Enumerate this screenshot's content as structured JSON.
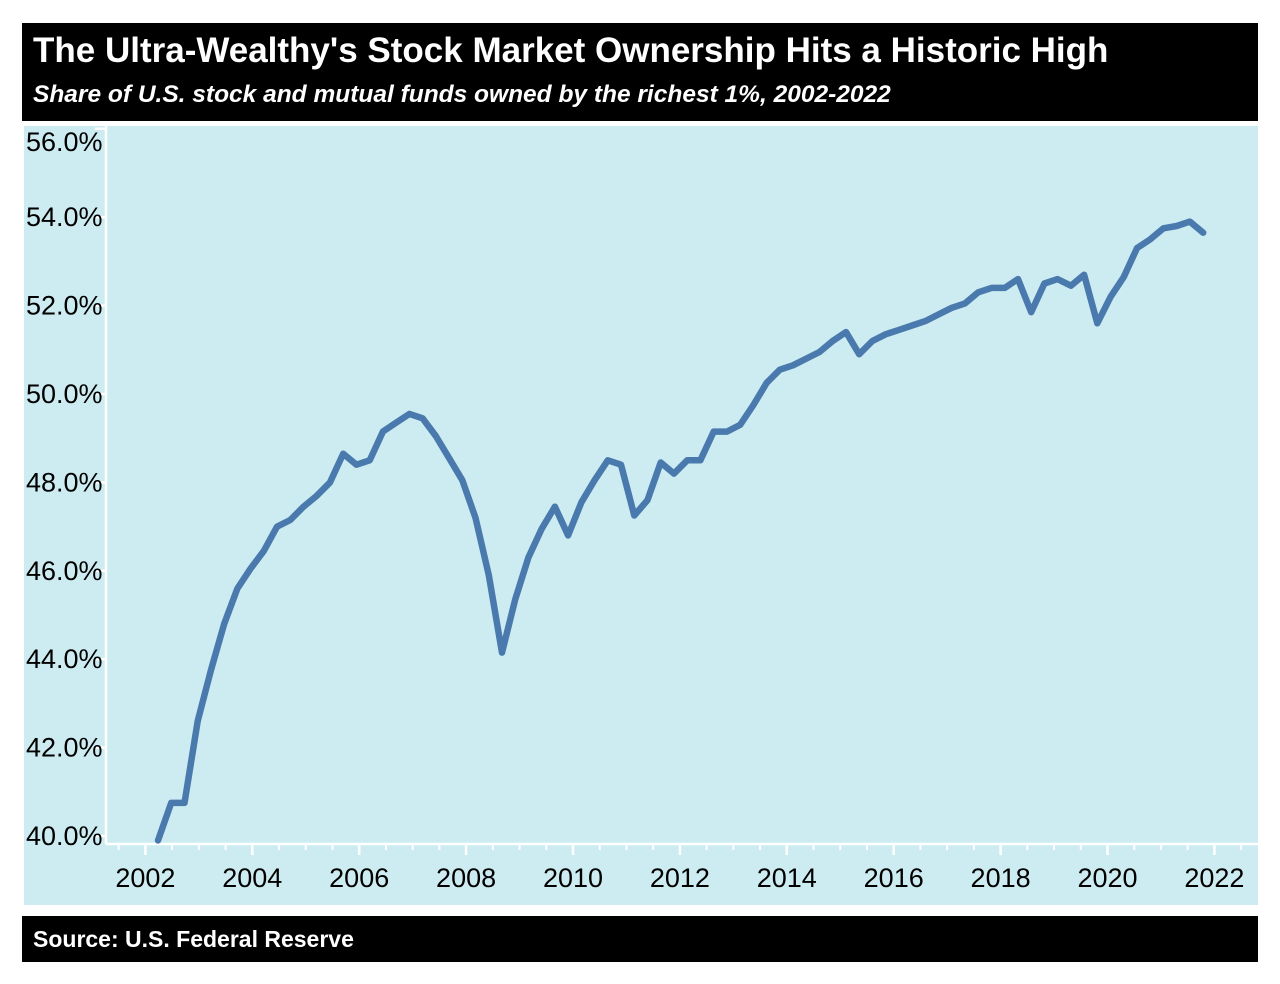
{
  "header": {
    "title": "The Ultra-Wealthy's Stock Market Ownership Hits a Historic High",
    "subtitle": "Share of U.S. stock and mutual funds owned by the richest 1%, 2002-2022"
  },
  "footer": {
    "source": "Source: U.S. Federal Reserve"
  },
  "colors": {
    "page_bg": "#ffffff",
    "header_bg": "#000000",
    "header_text": "#ffffff",
    "panel_bg": "#cdecf1",
    "line": "#4a7aad",
    "axis": "#ffffff",
    "tick_label": "#000000"
  },
  "chart_data": {
    "type": "line",
    "title": "The Ultra-Wealthy's Stock Market Ownership Hits a Historic High",
    "subtitle": "Share of U.S. stock and mutual funds owned by the richest 1%, 2002-2022",
    "source": "Source: U.S. Federal Reserve",
    "grid": false,
    "legend": false,
    "xlabel": "",
    "ylabel": "",
    "x": [
      "2002Q2",
      "2002Q3",
      "2002Q4",
      "2003Q1",
      "2003Q2",
      "2003Q3",
      "2003Q4",
      "2004Q1",
      "2004Q2",
      "2004Q3",
      "2004Q4",
      "2005Q1",
      "2005Q2",
      "2005Q3",
      "2005Q4",
      "2006Q1",
      "2006Q2",
      "2006Q3",
      "2006Q4",
      "2007Q1",
      "2007Q2",
      "2007Q3",
      "2007Q4",
      "2008Q1",
      "2008Q2",
      "2008Q3",
      "2008Q4",
      "2009Q1",
      "2009Q2",
      "2009Q3",
      "2009Q4",
      "2010Q1",
      "2010Q2",
      "2010Q3",
      "2010Q4",
      "2011Q1",
      "2011Q2",
      "2011Q3",
      "2011Q4",
      "2012Q1",
      "2012Q2",
      "2012Q3",
      "2012Q4",
      "2013Q1",
      "2013Q2",
      "2013Q3",
      "2013Q4",
      "2014Q1",
      "2014Q2",
      "2014Q3",
      "2014Q4",
      "2015Q1",
      "2015Q2",
      "2015Q3",
      "2015Q4",
      "2016Q1",
      "2016Q2",
      "2016Q3",
      "2016Q4",
      "2017Q1",
      "2017Q2",
      "2017Q3",
      "2017Q4",
      "2018Q1",
      "2018Q2",
      "2018Q3",
      "2018Q4",
      "2019Q1",
      "2019Q2",
      "2019Q3",
      "2019Q4",
      "2020Q1",
      "2020Q2",
      "2020Q3",
      "2020Q4",
      "2021Q1",
      "2021Q2",
      "2021Q3",
      "2021Q4",
      "2022Q1"
    ],
    "series": [
      {
        "name": "Share of U.S. stock and mutual funds owned by the richest 1%",
        "values": [
          39.9,
          40.75,
          40.75,
          42.6,
          43.75,
          44.8,
          45.6,
          46.05,
          46.45,
          47.0,
          47.15,
          47.45,
          47.7,
          48.0,
          48.65,
          48.4,
          48.5,
          49.15,
          49.35,
          49.55,
          49.45,
          49.05,
          48.55,
          48.05,
          47.2,
          45.9,
          44.15,
          45.35,
          46.3,
          46.95,
          47.45,
          46.8,
          47.55,
          48.05,
          48.5,
          48.4,
          47.25,
          47.6,
          48.45,
          48.2,
          48.5,
          48.5,
          49.15,
          49.15,
          49.3,
          49.75,
          50.25,
          50.55,
          50.65,
          50.8,
          50.95,
          51.2,
          51.4,
          50.9,
          51.2,
          51.35,
          51.45,
          51.55,
          51.65,
          51.8,
          51.95,
          52.05,
          52.3,
          52.4,
          52.4,
          52.6,
          51.85,
          52.5,
          52.6,
          52.45,
          52.7,
          51.6,
          52.2,
          52.65,
          53.3,
          53.5,
          53.75,
          53.8,
          53.9,
          53.65
        ]
      }
    ],
    "y_axis": {
      "ylim": [
        39.6,
        56.4
      ],
      "tick_values": [
        40,
        42,
        44,
        46,
        48,
        50,
        52,
        54,
        56
      ],
      "tick_labels": [
        "40.0%",
        "42.0%",
        "44.0%",
        "46.0%",
        "48.0%",
        "50.0%",
        "52.0%",
        "54.0%",
        "56.0%"
      ],
      "minor_ticks": false
    },
    "x_axis": {
      "xlim": [
        2001.27,
        2022.85
      ],
      "tick_years": [
        2002,
        2004,
        2006,
        2008,
        2010,
        2012,
        2014,
        2016,
        2018,
        2020,
        2022
      ],
      "tick_labels": [
        "2002",
        "2004",
        "2006",
        "2008",
        "2010",
        "2012",
        "2014",
        "2016",
        "2018",
        "2020",
        "2022"
      ],
      "minor_tick_interval": 0.5
    }
  }
}
